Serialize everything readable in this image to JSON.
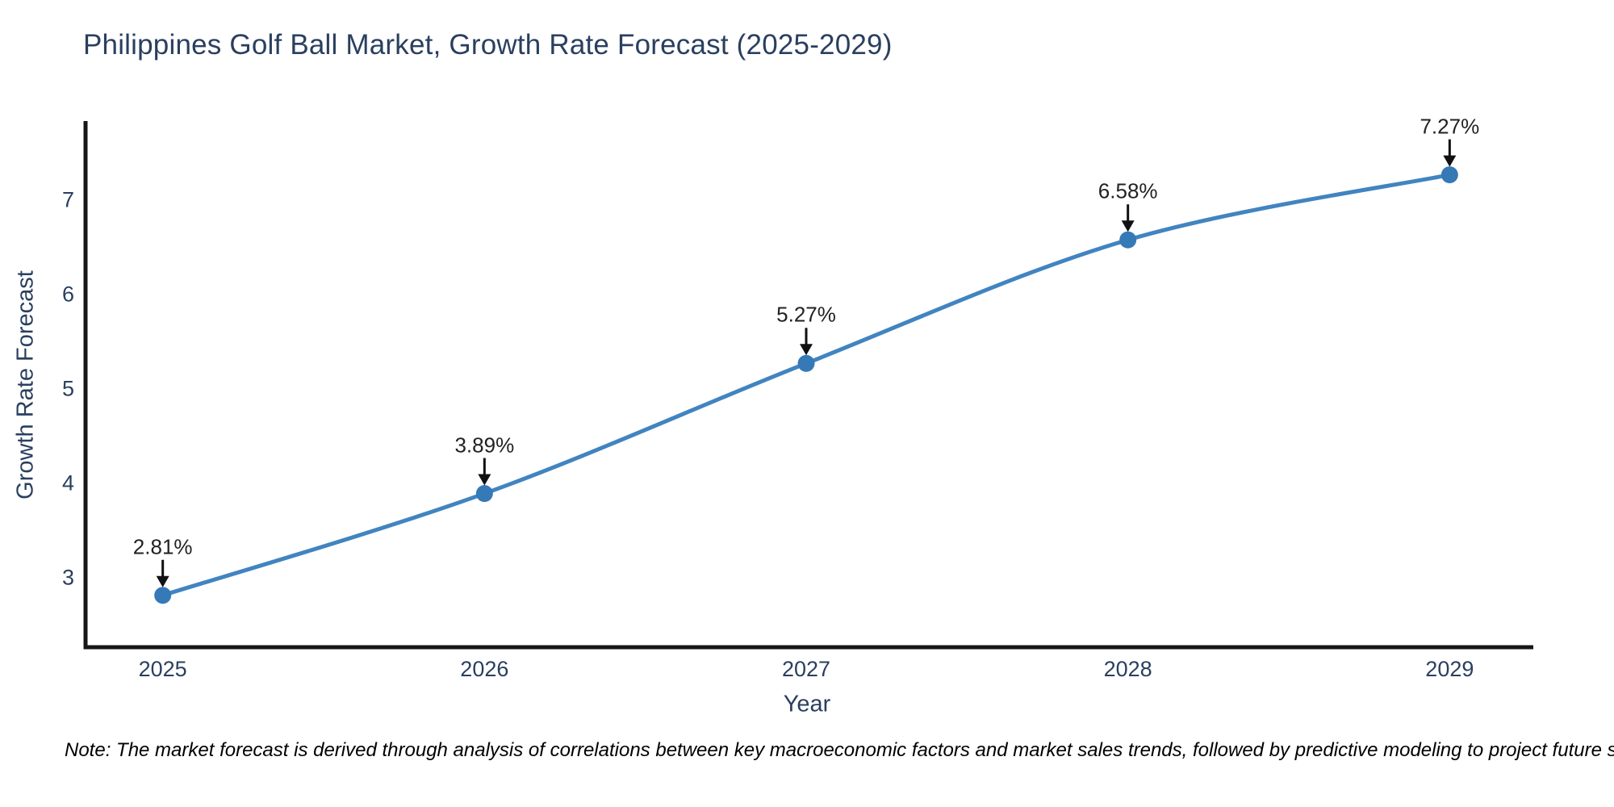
{
  "title": "Philippines Golf Ball Market, Growth Rate Forecast (2025-2029)",
  "note": "Note: The market forecast is derived through analysis of correlations between key macroeconomic factors and market sales trends, followed by predictive modeling to project future sales.",
  "chart_data": {
    "type": "line",
    "title": "Philippines Golf Ball Market, Growth Rate Forecast (2025-2029)",
    "xlabel": "Year",
    "ylabel": "Growth Rate Forecast",
    "x": [
      2025,
      2026,
      2027,
      2028,
      2029
    ],
    "series": [
      {
        "name": "Growth Rate Forecast",
        "values": [
          2.81,
          3.89,
          5.27,
          6.58,
          7.27
        ]
      }
    ],
    "point_labels": [
      "2.81%",
      "3.89%",
      "5.27%",
      "6.58%",
      "7.27%"
    ],
    "x_ticks": [
      "2025",
      "2026",
      "2027",
      "2028",
      "2029"
    ],
    "y_ticks": [
      "3",
      "4",
      "5",
      "6",
      "7"
    ],
    "y_tick_values": [
      3,
      4,
      5,
      6,
      7
    ],
    "xlim": [
      2024.76,
      2029.26
    ],
    "ylim": [
      2.26,
      7.84
    ],
    "grid": false,
    "legend": false,
    "line_shape": "spline",
    "annotation_style": "label-with-down-arrow",
    "colors": {
      "line": "#4184c0",
      "marker": "#3679b7",
      "spine": "#161616",
      "arrow": "#111111",
      "axis_text": "#2a3f5f",
      "annotation_text": "#222222",
      "background": "#ffffff"
    }
  }
}
